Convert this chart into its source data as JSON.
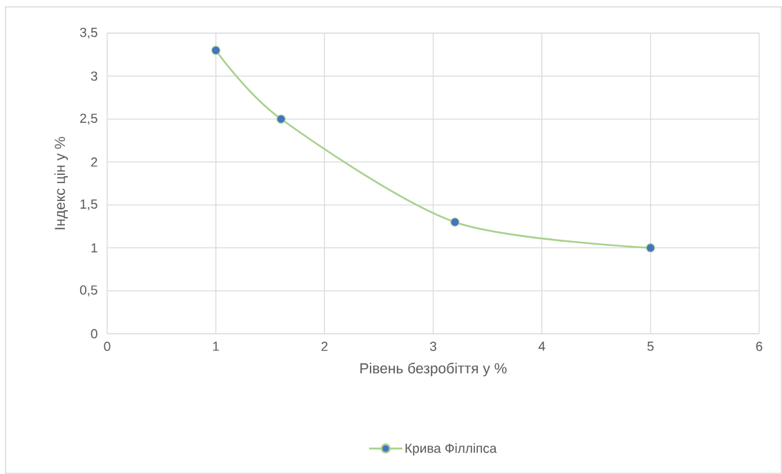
{
  "chart_data": {
    "type": "line",
    "xlabel": "Рівень безробіття у %",
    "ylabel": "Індекс цін у %",
    "x": [
      1,
      1.6,
      3.2,
      5
    ],
    "series": [
      {
        "name": "Крива Філліпса",
        "color": "#a9d18e",
        "colors": [
          "#4472c4",
          "#4472c4",
          "#4472c4",
          "#4472c4"
        ],
        "values": [
          3.3,
          2.5,
          1.3,
          1.0
        ]
      }
    ],
    "xlim": [
      0,
      6
    ],
    "xticks": [
      0,
      1,
      2,
      3,
      4,
      5,
      6
    ],
    "ylim": [
      0,
      3.5
    ],
    "yticks": [
      0,
      {
        "value": 0.5,
        "label": "0,5"
      },
      1,
      {
        "value": 1.5,
        "label": "1,5"
      },
      2,
      {
        "value": 2.5,
        "label": "2,5"
      },
      3,
      {
        "value": 3.5,
        "label": "3,5"
      }
    ],
    "grid": true,
    "legend": "bottom",
    "marker": "circle",
    "line_style": "solid"
  }
}
